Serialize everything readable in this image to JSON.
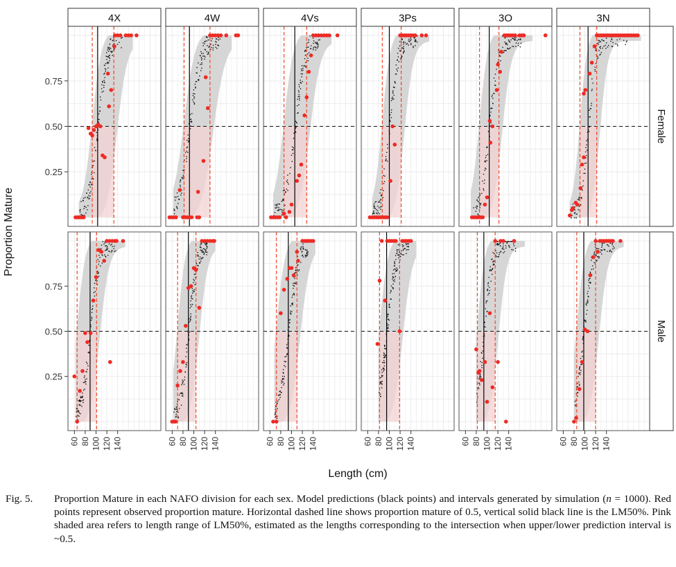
{
  "chart_data": {
    "type": "scatter",
    "layout": "facet grid: columns = NAFO division, rows = sex",
    "ylabel": "Proportion Mature",
    "xlabel": "Length (cm)",
    "yticks": [
      "0.25",
      "0.50",
      "0.75"
    ],
    "ytick_values": [
      0.25,
      0.5,
      0.75
    ],
    "xticks": [
      "60",
      "80",
      "100",
      "120",
      "140"
    ],
    "xtick_values": [
      60,
      80,
      100,
      120,
      140
    ],
    "xlim": [
      48,
      220
    ],
    "ylim": [
      -0.05,
      1.05
    ],
    "hline": 0.5,
    "grid": true,
    "columns": [
      "4X",
      "4W",
      "4Vs",
      "3Ps",
      "3O",
      "3N"
    ],
    "rows": [
      "Female",
      "Male"
    ],
    "colors": {
      "observed": "#ee2a24",
      "prediction": "#111111",
      "interval": "#d4d4d4",
      "lm50_range": "#f3d3d3",
      "lm50_line": "#000000",
      "lm50_bounds": "#ee4a2a",
      "grid": "#ebebeb",
      "panel_border": "#555555"
    },
    "panels": [
      {
        "division": "4X",
        "sex": "Female",
        "lm50": 103,
        "lm50_low": 93,
        "lm50_high": 133,
        "len_min": 68,
        "len_max": 168,
        "observed": [
          [
            62,
            0
          ],
          [
            65,
            0
          ],
          [
            68,
            0
          ],
          [
            71,
            0
          ],
          [
            74,
            0
          ],
          [
            77,
            0
          ],
          [
            86,
            0.49
          ],
          [
            90,
            0.46
          ],
          [
            93,
            0.45
          ],
          [
            96,
            0.48
          ],
          [
            100,
            0.5
          ],
          [
            104,
            0.51
          ],
          [
            108,
            0.5
          ],
          [
            112,
            0.34
          ],
          [
            116,
            0.33
          ],
          [
            124,
            0.61
          ],
          [
            128,
            0.7
          ],
          [
            122,
            0.79
          ],
          [
            134,
            0.94
          ],
          [
            135,
            1
          ],
          [
            140,
            1
          ],
          [
            145,
            1
          ],
          [
            155,
            1
          ],
          [
            160,
            1
          ],
          [
            165,
            1
          ],
          [
            175,
            1
          ]
        ]
      },
      {
        "division": "4W",
        "sex": "Female",
        "lm50": 92,
        "lm50_low": 82,
        "lm50_high": 130,
        "len_min": 62,
        "len_max": 170,
        "observed": [
          [
            55,
            0
          ],
          [
            59,
            0
          ],
          [
            63,
            0
          ],
          [
            67,
            0
          ],
          [
            80,
            0
          ],
          [
            84,
            0
          ],
          [
            88,
            0
          ],
          [
            92,
            0
          ],
          [
            96,
            0
          ],
          [
            106,
            0
          ],
          [
            110,
            0
          ],
          [
            74,
            0.15
          ],
          [
            108,
            0.14
          ],
          [
            118,
            0.31
          ],
          [
            126,
            0.6
          ],
          [
            122,
            0.77
          ],
          [
            130,
            1
          ],
          [
            135,
            1
          ],
          [
            140,
            1
          ],
          [
            145,
            1
          ],
          [
            150,
            1
          ],
          [
            160,
            1
          ],
          [
            178,
            1
          ],
          [
            182,
            1
          ]
        ]
      },
      {
        "division": "4Vs",
        "sex": "Female",
        "lm50": 106,
        "lm50_low": 86,
        "lm50_high": 128,
        "len_min": 66,
        "len_max": 175,
        "observed": [
          [
            62,
            0
          ],
          [
            66,
            0
          ],
          [
            70,
            0
          ],
          [
            74,
            0
          ],
          [
            78,
            0
          ],
          [
            90,
            0
          ],
          [
            86,
            0.02
          ],
          [
            96,
            0.03
          ],
          [
            100,
            0.07
          ],
          [
            110,
            0.2
          ],
          [
            114,
            0.23
          ],
          [
            118,
            0.29
          ],
          [
            124,
            0.56
          ],
          [
            128,
            0.66
          ],
          [
            132,
            0.8
          ],
          [
            136,
            0.89
          ],
          [
            140,
            1
          ],
          [
            145,
            1
          ],
          [
            150,
            1
          ],
          [
            155,
            1
          ],
          [
            160,
            1
          ],
          [
            165,
            1
          ],
          [
            170,
            1
          ],
          [
            185,
            1
          ]
        ]
      },
      {
        "division": "3Ps",
        "sex": "Female",
        "lm50": 100,
        "lm50_low": 87,
        "lm50_high": 122,
        "len_min": 68,
        "len_max": 175,
        "observed": [
          [
            64,
            0
          ],
          [
            68,
            0
          ],
          [
            72,
            0
          ],
          [
            76,
            0
          ],
          [
            80,
            0
          ],
          [
            84,
            0
          ],
          [
            88,
            0
          ],
          [
            92,
            0
          ],
          [
            96,
            0
          ],
          [
            102,
            0.2
          ],
          [
            106,
            0.5
          ],
          [
            110,
            0.4
          ],
          [
            120,
            1
          ],
          [
            124,
            1
          ],
          [
            128,
            1
          ],
          [
            132,
            1
          ],
          [
            136,
            1
          ],
          [
            140,
            1
          ],
          [
            144,
            1
          ],
          [
            148,
            1
          ],
          [
            160,
            1
          ],
          [
            168,
            1
          ]
        ]
      },
      {
        "division": "3O",
        "sex": "Female",
        "lm50": 104,
        "lm50_low": 86,
        "lm50_high": 122,
        "len_min": 70,
        "len_max": 185,
        "observed": [
          [
            72,
            0
          ],
          [
            76,
            0
          ],
          [
            80,
            0
          ],
          [
            84,
            0
          ],
          [
            88,
            0
          ],
          [
            92,
            0
          ],
          [
            96,
            0.07
          ],
          [
            100,
            0.11
          ],
          [
            106,
            0.41
          ],
          [
            110,
            0.5
          ],
          [
            105,
            0.53
          ],
          [
            118,
            0.7
          ],
          [
            124,
            0.8
          ],
          [
            120,
            0.84
          ],
          [
            126,
            0.91
          ],
          [
            132,
            1
          ],
          [
            136,
            1
          ],
          [
            140,
            1
          ],
          [
            144,
            1
          ],
          [
            148,
            1
          ],
          [
            152,
            1
          ],
          [
            160,
            1
          ],
          [
            164,
            1
          ],
          [
            168,
            1
          ],
          [
            208,
            1
          ]
        ]
      },
      {
        "division": "3N",
        "sex": "Female",
        "lm50": 106,
        "lm50_low": 91,
        "lm50_high": 122,
        "len_min": 72,
        "len_max": 205,
        "observed": [
          [
            72,
            0.01
          ],
          [
            76,
            0.04
          ],
          [
            78,
            0.05
          ],
          [
            83,
            0.08
          ],
          [
            86,
            0.07
          ],
          [
            92,
            0.16
          ],
          [
            95,
            0.29
          ],
          [
            98,
            0.33
          ],
          [
            98,
            0.68
          ],
          [
            101,
            0.7
          ],
          [
            109,
            0.79
          ],
          [
            113,
            0.85
          ],
          [
            118,
            0.94
          ],
          [
            122,
            1
          ],
          [
            126,
            1
          ],
          [
            130,
            1
          ],
          [
            134,
            1
          ],
          [
            138,
            1
          ],
          [
            142,
            1
          ],
          [
            146,
            1
          ],
          [
            150,
            1
          ],
          [
            154,
            1
          ],
          [
            158,
            1
          ],
          [
            162,
            1
          ],
          [
            166,
            1
          ],
          [
            170,
            1
          ],
          [
            174,
            1
          ],
          [
            178,
            1
          ],
          [
            182,
            1
          ],
          [
            186,
            1
          ],
          [
            190,
            1
          ],
          [
            194,
            1
          ],
          [
            198,
            1
          ]
        ]
      },
      {
        "division": "4X",
        "sex": "Male",
        "lm50": 89,
        "lm50_low": 65,
        "lm50_high": 101,
        "len_min": 62,
        "len_max": 155,
        "observed": [
          [
            60,
            0.25
          ],
          [
            65,
            0
          ],
          [
            70,
            0.17
          ],
          [
            75,
            0.28
          ],
          [
            80,
            0.49
          ],
          [
            84,
            0.44
          ],
          [
            90,
            0.49
          ],
          [
            95,
            0.67
          ],
          [
            100,
            0.8
          ],
          [
            105,
            0.95
          ],
          [
            110,
            0.94
          ],
          [
            115,
            0.89
          ],
          [
            120,
            1
          ],
          [
            125,
            1
          ],
          [
            130,
            1
          ],
          [
            135,
            1
          ],
          [
            138,
            1
          ],
          [
            150,
            1
          ],
          [
            126,
            0.33
          ]
        ]
      },
      {
        "division": "4W",
        "sex": "Male",
        "lm50": 90,
        "lm50_low": 70,
        "lm50_high": 104,
        "len_min": 62,
        "len_max": 140,
        "observed": [
          [
            60,
            0
          ],
          [
            63,
            0
          ],
          [
            66,
            0
          ],
          [
            70,
            0.2
          ],
          [
            75,
            0.28
          ],
          [
            80,
            0.33
          ],
          [
            85,
            0.53
          ],
          [
            90,
            0.74
          ],
          [
            95,
            0.75
          ],
          [
            100,
            0.85
          ],
          [
            104,
            0.84
          ],
          [
            110,
            0.63
          ],
          [
            115,
            1
          ],
          [
            120,
            1
          ],
          [
            125,
            1
          ],
          [
            130,
            1
          ],
          [
            135,
            1
          ],
          [
            138,
            1
          ]
        ]
      },
      {
        "division": "4Vs",
        "sex": "Male",
        "lm50": 94,
        "lm50_low": 72,
        "lm50_high": 110,
        "len_min": 68,
        "len_max": 145,
        "observed": [
          [
            66,
            0
          ],
          [
            72,
            0
          ],
          [
            80,
            0.6
          ],
          [
            86,
            0.73
          ],
          [
            92,
            0.79
          ],
          [
            96,
            0.85
          ],
          [
            100,
            0.85
          ],
          [
            104,
            0.81
          ],
          [
            110,
            0.94
          ],
          [
            112,
            0.89
          ],
          [
            120,
            1
          ],
          [
            124,
            1
          ],
          [
            128,
            1
          ],
          [
            132,
            1
          ],
          [
            136,
            1
          ],
          [
            140,
            1
          ]
        ]
      },
      {
        "division": "3Ps",
        "sex": "Male",
        "lm50": 95,
        "lm50_low": 82,
        "lm50_high": 119,
        "len_min": 80,
        "len_max": 150,
        "observed": [
          [
            78,
            0.43
          ],
          [
            82,
            0.78
          ],
          [
            86,
            1
          ],
          [
            92,
            0.67
          ],
          [
            96,
            1
          ],
          [
            100,
            1
          ],
          [
            104,
            1
          ],
          [
            108,
            1
          ],
          [
            112,
            1
          ],
          [
            119,
            0.5
          ],
          [
            124,
            1
          ],
          [
            128,
            1
          ],
          [
            132,
            1
          ],
          [
            136,
            1
          ],
          [
            140,
            1
          ]
        ]
      },
      {
        "division": "3O",
        "sex": "Male",
        "lm50": 94,
        "lm50_low": 82,
        "lm50_high": 115,
        "len_min": 80,
        "len_max": 170,
        "observed": [
          [
            80,
            0.4
          ],
          [
            84,
            0.27
          ],
          [
            86,
            0.28
          ],
          [
            90,
            0.23
          ],
          [
            96,
            0.33
          ],
          [
            100,
            0.11
          ],
          [
            105,
            0.6
          ],
          [
            110,
            0.19
          ],
          [
            115,
            1
          ],
          [
            120,
            0.33
          ],
          [
            125,
            1
          ],
          [
            130,
            1
          ],
          [
            135,
            0
          ],
          [
            150,
            1
          ]
        ]
      },
      {
        "division": "3N",
        "sex": "Male",
        "lm50": 98,
        "lm50_low": 85,
        "lm50_high": 120,
        "len_min": 80,
        "len_max": 172,
        "observed": [
          [
            80,
            0
          ],
          [
            84,
            0.02
          ],
          [
            90,
            0.18
          ],
          [
            95,
            0.33
          ],
          [
            100,
            0.51
          ],
          [
            105,
            0.5
          ],
          [
            110,
            0.81
          ],
          [
            115,
            0.91
          ],
          [
            120,
            1
          ],
          [
            124,
            0.94
          ],
          [
            128,
            1
          ],
          [
            132,
            1
          ],
          [
            136,
            1
          ],
          [
            140,
            1
          ],
          [
            144,
            1
          ],
          [
            148,
            1
          ],
          [
            152,
            1
          ],
          [
            166,
            1
          ]
        ]
      }
    ]
  },
  "caption": {
    "label": "Fig. 5.",
    "text_1": "Proportion Mature in each NAFO division for each sex. Model predictions (black points) and intervals generated by simulation (",
    "n_symbol": "n",
    "text_2": " = 1000). Red points represent observed proportion mature. Horizontal dashed line shows proportion mature of 0.5, vertical solid black line is the LM50%. Pink shaded area refers to length range of LM50%, estimated as the lengths corresponding to the intersection when upper/lower prediction interval is ~0.5."
  }
}
